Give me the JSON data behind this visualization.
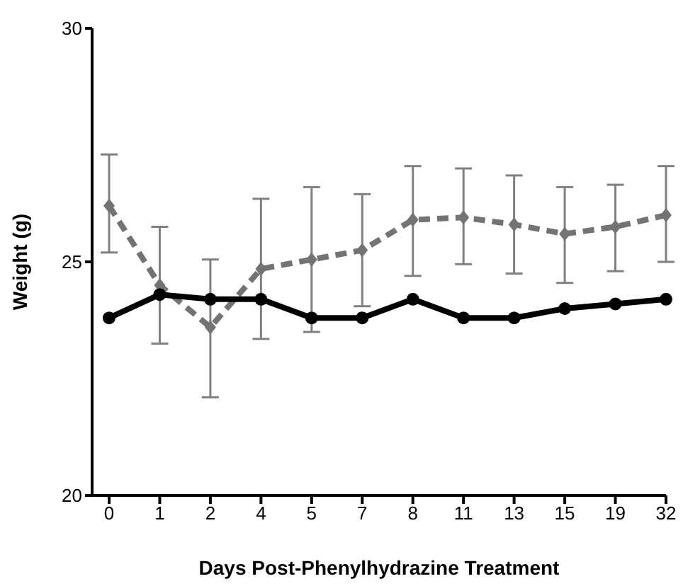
{
  "chart_data": {
    "type": "line",
    "xlabel": "Days Post-Phenylhydrazine Treatment",
    "ylabel": "Weight (g)",
    "categories": [
      "0",
      "1",
      "2",
      "4",
      "5",
      "7",
      "8",
      "11",
      "13",
      "15",
      "19",
      "32"
    ],
    "ylim": [
      20,
      30
    ],
    "yticks": [
      20,
      25,
      30
    ],
    "grid": false,
    "legend": false,
    "series": [
      {
        "color": "#000000",
        "marker": "circle",
        "line_style": "solid",
        "values": [
          23.8,
          24.3,
          24.2,
          24.2,
          23.8,
          23.8,
          24.2,
          23.8,
          23.8,
          24.0,
          24.1,
          24.2
        ]
      },
      {
        "color": "#737373",
        "marker": "diamond",
        "line_style": "dashed",
        "values": [
          26.2,
          24.5,
          23.6,
          24.85,
          25.05,
          25.25,
          25.9,
          25.95,
          25.8,
          25.6,
          25.75,
          26.0
        ],
        "errors": [
          [
            25.2,
            27.3
          ],
          [
            23.25,
            25.75
          ],
          [
            22.1,
            25.05
          ],
          [
            23.35,
            26.35
          ],
          [
            23.5,
            26.6
          ],
          [
            24.05,
            26.45
          ],
          [
            24.7,
            27.05
          ],
          [
            24.95,
            27.0
          ],
          [
            24.75,
            26.85
          ],
          [
            24.55,
            26.6
          ],
          [
            24.8,
            26.65
          ],
          [
            25.0,
            27.05
          ]
        ]
      }
    ]
  }
}
